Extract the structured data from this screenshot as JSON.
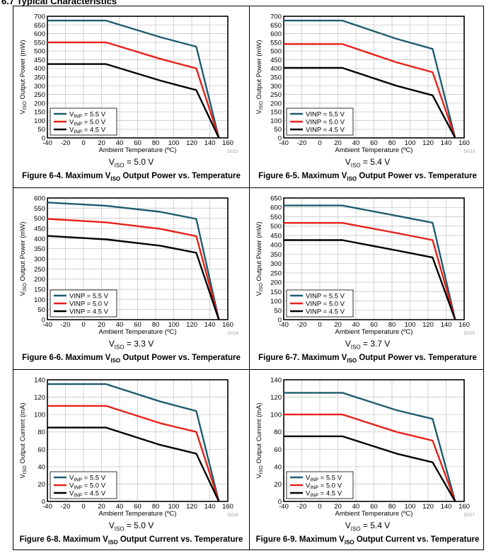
{
  "page": {
    "heading": "6.7 Typical Characteristics"
  },
  "chart_data": [
    {
      "type": "line",
      "figure_num": "Figure 6-4.",
      "caption_pre": "Maximum V",
      "caption_sub": "ISO",
      "caption_post": " Output Power vs. Temperature",
      "condition_label": "V",
      "condition_sub": "ISO",
      "condition_value": " = 5.0 V",
      "ylabel_pre": "V",
      "ylabel_sub": "ISO",
      "ylabel_post": " Output Power (mW)",
      "xlabel": "Ambient Temperature (ºC)",
      "code": "D022",
      "xlim": [
        -40,
        160
      ],
      "xticks": [
        -40,
        -20,
        0,
        20,
        40,
        60,
        80,
        100,
        120,
        140,
        160
      ],
      "ylim": [
        0,
        700
      ],
      "yticks": [
        0,
        50,
        100,
        150,
        200,
        250,
        300,
        350,
        400,
        450,
        500,
        550,
        600,
        650,
        700
      ],
      "legend_style": "sub",
      "series": [
        {
          "name": "V_INP = 5.5 V",
          "legend_pre": "V",
          "legend_sub": "INP",
          "legend_post": " = 5.5 V",
          "color": "#1f5c6e",
          "x": [
            -40,
            25,
            85,
            125,
            150
          ],
          "y": [
            675,
            675,
            580,
            525,
            0
          ]
        },
        {
          "name": "V_INP = 5.0 V",
          "legend_pre": "V",
          "legend_sub": "INP",
          "legend_post": " = 5.0 V",
          "color": "#e8201a",
          "x": [
            -40,
            25,
            85,
            125,
            150
          ],
          "y": [
            550,
            550,
            455,
            400,
            0
          ]
        },
        {
          "name": "V_INP = 4.5 V",
          "legend_pre": "V",
          "legend_sub": "INP",
          "legend_post": " = 4.5 V",
          "color": "#000000",
          "x": [
            -40,
            25,
            85,
            125,
            150
          ],
          "y": [
            425,
            425,
            330,
            275,
            0
          ]
        }
      ]
    },
    {
      "type": "line",
      "figure_num": "Figure 6-5.",
      "caption_pre": "Maximum V",
      "caption_sub": "ISO",
      "caption_post": " Output Power vs. Temperature",
      "condition_label": "V",
      "condition_sub": "ISO",
      "condition_value": " = 5.4 V",
      "ylabel_pre": "V",
      "ylabel_sub": "ISO",
      "ylabel_post": " Output Power (mW)",
      "xlabel": "Ambient Temperature (ºC)",
      "code": "D023",
      "xlim": [
        -40,
        160
      ],
      "xticks": [
        -40,
        -20,
        0,
        20,
        40,
        60,
        80,
        100,
        120,
        140,
        160
      ],
      "ylim": [
        0,
        700
      ],
      "yticks": [
        0,
        50,
        100,
        150,
        200,
        250,
        300,
        350,
        400,
        450,
        500,
        550,
        600,
        650,
        700
      ],
      "legend_style": "plain",
      "series": [
        {
          "name": "VINP = 5.5 V",
          "legend_pre": "VINP = 5.5 V",
          "legend_sub": "",
          "legend_post": "",
          "color": "#1f5c6e",
          "x": [
            -40,
            25,
            85,
            125,
            150
          ],
          "y": [
            675,
            675,
            570,
            512,
            0
          ]
        },
        {
          "name": "VINP = 5.0 V",
          "legend_pre": "VINP = 5.0 V",
          "legend_sub": "",
          "legend_post": "",
          "color": "#e8201a",
          "x": [
            -40,
            25,
            85,
            125,
            150
          ],
          "y": [
            540,
            540,
            435,
            378,
            0
          ]
        },
        {
          "name": "VINP = 4.5 V",
          "legend_pre": "VINP = 4.5 V",
          "legend_sub": "",
          "legend_post": "",
          "color": "#000000",
          "x": [
            -40,
            25,
            85,
            125,
            150
          ],
          "y": [
            403,
            403,
            300,
            245,
            0
          ]
        }
      ]
    },
    {
      "type": "line",
      "figure_num": "Figure 6-6.",
      "caption_pre": "Maximum V",
      "caption_sub": "ISO",
      "caption_post": " Output Power vs. Temperature",
      "condition_label": "V",
      "condition_sub": "ISO",
      "condition_value": " = 3.3 V",
      "ylabel_pre": "V",
      "ylabel_sub": "ISO",
      "ylabel_post": " Output Power (mW)",
      "xlabel": "Ambient Temperature (ºC)",
      "code": "D024",
      "xlim": [
        -40,
        160
      ],
      "xticks": [
        -40,
        -20,
        0,
        20,
        40,
        60,
        80,
        100,
        120,
        140,
        160
      ],
      "ylim": [
        0,
        600
      ],
      "yticks": [
        0,
        50,
        100,
        150,
        200,
        250,
        300,
        350,
        400,
        450,
        500,
        550,
        600
      ],
      "legend_style": "plain",
      "series": [
        {
          "name": "VINP = 5.5 V",
          "legend_pre": "VINP = 5.5 V",
          "legend_sub": "",
          "legend_post": "",
          "color": "#1f5c6e",
          "x": [
            -40,
            25,
            85,
            125,
            150
          ],
          "y": [
            578,
            562,
            532,
            497,
            0
          ]
        },
        {
          "name": "VINP = 5.0 V",
          "legend_pre": "VINP = 5.0 V",
          "legend_sub": "",
          "legend_post": "",
          "color": "#e8201a",
          "x": [
            -40,
            25,
            85,
            125,
            150
          ],
          "y": [
            497,
            480,
            448,
            412,
            0
          ]
        },
        {
          "name": "VINP = 4.5 V",
          "legend_pre": "VINP = 4.5 V",
          "legend_sub": "",
          "legend_post": "",
          "color": "#000000",
          "x": [
            -40,
            25,
            85,
            125,
            150
          ],
          "y": [
            413,
            396,
            365,
            330,
            0
          ]
        }
      ]
    },
    {
      "type": "line",
      "figure_num": "Figure 6-7.",
      "caption_pre": "Maximum V",
      "caption_sub": "ISO",
      "caption_post": " Output Power vs. Temperature",
      "condition_label": "V",
      "condition_sub": "ISO",
      "condition_value": " = 3.7 V",
      "ylabel_pre": "V",
      "ylabel_sub": "ISO",
      "ylabel_post": " Output Power (mW)",
      "xlabel": "Ambient Temperature (ºC)",
      "code": "D025",
      "xlim": [
        -40,
        160
      ],
      "xticks": [
        -40,
        -20,
        0,
        20,
        40,
        60,
        80,
        100,
        120,
        140,
        160
      ],
      "ylim": [
        0,
        650
      ],
      "yticks": [
        0,
        50,
        100,
        150,
        200,
        250,
        300,
        350,
        400,
        450,
        500,
        550,
        600,
        650
      ],
      "legend_style": "plain",
      "series": [
        {
          "name": "VINP = 5.5 V",
          "legend_pre": "VINP = 5.5 V",
          "legend_sub": "",
          "legend_post": "",
          "color": "#1f5c6e",
          "x": [
            -40,
            25,
            85,
            125,
            150
          ],
          "y": [
            610,
            610,
            555,
            518,
            0
          ]
        },
        {
          "name": "VINP = 5.0 V",
          "legend_pre": "VINP = 5.0 V",
          "legend_sub": "",
          "legend_post": "",
          "color": "#e8201a",
          "x": [
            -40,
            25,
            85,
            125,
            150
          ],
          "y": [
            517,
            517,
            463,
            425,
            0
          ]
        },
        {
          "name": "VINP = 4.5 V",
          "legend_pre": "VINP = 4.5 V",
          "legend_sub": "",
          "legend_post": "",
          "color": "#000000",
          "x": [
            -40,
            25,
            85,
            125,
            150
          ],
          "y": [
            425,
            425,
            370,
            332,
            0
          ]
        }
      ]
    },
    {
      "type": "line",
      "figure_num": "Figure 6-8.",
      "caption_pre": "Maximum V",
      "caption_sub": "ISO",
      "caption_post": " Output Current vs. Temperature",
      "condition_label": "V",
      "condition_sub": "ISO",
      "condition_value": " = 5.0 V",
      "ylabel_pre": "V",
      "ylabel_sub": "ISO",
      "ylabel_post": " Output Current (mA)",
      "xlabel": "Ambient Temperature (ºC)",
      "code": "D026",
      "xlim": [
        -40,
        160
      ],
      "xticks": [
        -40,
        -20,
        0,
        20,
        40,
        60,
        80,
        100,
        120,
        140,
        160
      ],
      "ylim": [
        0,
        140
      ],
      "yticks": [
        0,
        20,
        40,
        60,
        80,
        100,
        120,
        140
      ],
      "legend_style": "sub",
      "series": [
        {
          "name": "V_INP = 5.5 V",
          "legend_pre": "V",
          "legend_sub": "INP",
          "legend_post": " = 5.5 V",
          "color": "#1f5c6e",
          "x": [
            -40,
            25,
            85,
            125,
            150
          ],
          "y": [
            135,
            135,
            115,
            104,
            0
          ]
        },
        {
          "name": "V_INP = 5.0 V",
          "legend_pre": "V",
          "legend_sub": "INP",
          "legend_post": " = 5.0 V",
          "color": "#e8201a",
          "x": [
            -40,
            25,
            85,
            125,
            150
          ],
          "y": [
            110,
            110,
            90,
            80,
            0
          ]
        },
        {
          "name": "V_INP = 4.5 V",
          "legend_pre": "V",
          "legend_sub": "INP",
          "legend_post": " = 4.5 V",
          "color": "#000000",
          "x": [
            -40,
            25,
            85,
            125,
            150
          ],
          "y": [
            85,
            85,
            65,
            55,
            0
          ]
        }
      ]
    },
    {
      "type": "line",
      "figure_num": "Figure 6-9.",
      "caption_pre": "Maximum V",
      "caption_sub": "ISO",
      "caption_post": " Output Current vs. Temperature",
      "condition_label": "V",
      "condition_sub": "ISO",
      "condition_value": " = 5.4 V",
      "ylabel_pre": "V",
      "ylabel_sub": "ISO",
      "ylabel_post": " Output Current (mA)",
      "xlabel": "Ambient Temperature (ºC)",
      "code": "D027",
      "xlim": [
        -40,
        160
      ],
      "xticks": [
        -40,
        -20,
        0,
        20,
        40,
        60,
        80,
        100,
        120,
        140,
        160
      ],
      "ylim": [
        0,
        140
      ],
      "yticks": [
        0,
        20,
        40,
        60,
        80,
        100,
        120,
        140
      ],
      "legend_style": "sub",
      "series": [
        {
          "name": "V_INP = 5.5 V",
          "legend_pre": "V",
          "legend_sub": "INP",
          "legend_post": " = 5.5 V",
          "color": "#1f5c6e",
          "x": [
            -40,
            25,
            85,
            125,
            150
          ],
          "y": [
            125,
            125,
            105,
            95,
            0
          ]
        },
        {
          "name": "V_INP = 5.0 V",
          "legend_pre": "V",
          "legend_sub": "INP",
          "legend_post": " = 5.0 V",
          "color": "#e8201a",
          "x": [
            -40,
            25,
            85,
            125,
            150
          ],
          "y": [
            100,
            100,
            80,
            70,
            0
          ]
        },
        {
          "name": "V_INP = 4.5 V",
          "legend_pre": "V",
          "legend_sub": "INP",
          "legend_post": " = 4.5 V",
          "color": "#000000",
          "x": [
            -40,
            25,
            85,
            125,
            150
          ],
          "y": [
            75,
            75,
            55,
            45,
            0
          ]
        }
      ]
    }
  ]
}
